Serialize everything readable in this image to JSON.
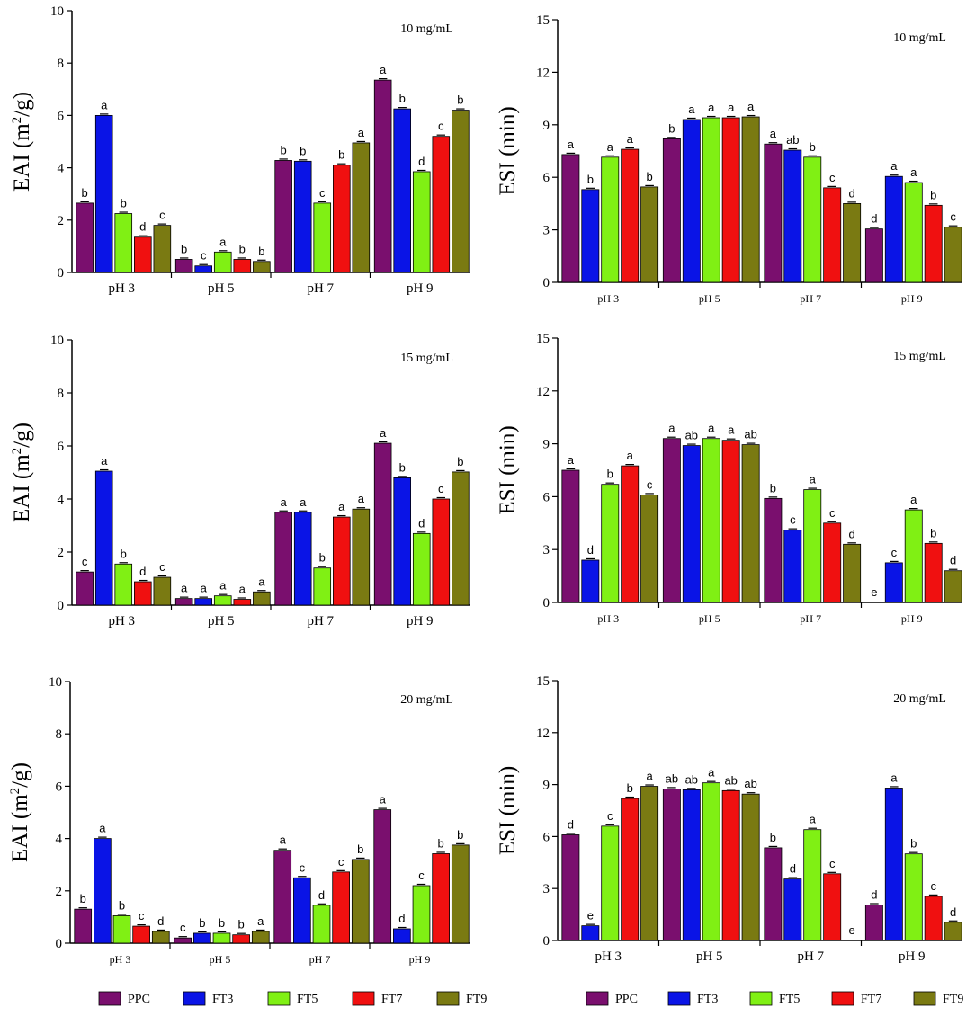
{
  "series_colors": {
    "PPC": "#7a0f6e",
    "FT3": "#0a14e6",
    "FT5": "#80f014",
    "FT7": "#f01010",
    "FT9": "#7a7a12"
  },
  "legend": [
    "PPC",
    "FT3",
    "FT5",
    "FT7",
    "FT9"
  ],
  "chart_data": [
    {
      "id": "eai-10",
      "type": "bar",
      "ylabel": "EAI (m²/g)",
      "annotation": "10 mg/mL",
      "ylim": [
        0,
        10
      ],
      "yticks": [
        "0",
        "2",
        "4",
        "6",
        "8",
        "10"
      ],
      "categories": [
        "pH 3",
        "pH 5",
        "pH 7",
        "pH 9"
      ],
      "series": [
        {
          "name": "PPC",
          "values": [
            2.65,
            0.5,
            4.28,
            7.35
          ],
          "letters": [
            "b",
            "b",
            "b",
            "a"
          ]
        },
        {
          "name": "FT3",
          "values": [
            6.0,
            0.25,
            4.25,
            6.25
          ],
          "letters": [
            "a",
            "c",
            "b",
            "b"
          ]
        },
        {
          "name": "FT5",
          "values": [
            2.25,
            0.78,
            2.65,
            3.85
          ],
          "letters": [
            "b",
            "a",
            "c",
            "d"
          ]
        },
        {
          "name": "FT7",
          "values": [
            1.35,
            0.5,
            4.1,
            5.2
          ],
          "letters": [
            "d",
            "b",
            "b",
            "c"
          ]
        },
        {
          "name": "FT9",
          "values": [
            1.8,
            0.42,
            4.95,
            6.2
          ],
          "letters": [
            "c",
            "b",
            "a",
            "b"
          ]
        }
      ]
    },
    {
      "id": "esi-10",
      "type": "bar",
      "ylabel": "ESI (min)",
      "annotation": "10 mg/mL",
      "ylim": [
        0,
        15
      ],
      "yticks": [
        "0",
        "3",
        "6",
        "9",
        "12",
        "15"
      ],
      "categories": [
        "pH 3",
        "pH 5",
        "pH 7",
        "pH 9"
      ],
      "series": [
        {
          "name": "PPC",
          "values": [
            7.3,
            8.2,
            7.9,
            3.05
          ],
          "letters": [
            "a",
            "b",
            "a",
            "d"
          ]
        },
        {
          "name": "FT3",
          "values": [
            5.3,
            9.3,
            7.55,
            6.05
          ],
          "letters": [
            "b",
            "a",
            "ab",
            "a"
          ]
        },
        {
          "name": "FT5",
          "values": [
            7.15,
            9.4,
            7.15,
            5.7
          ],
          "letters": [
            "a",
            "a",
            "b",
            "a"
          ]
        },
        {
          "name": "FT7",
          "values": [
            7.6,
            9.4,
            5.4,
            4.4
          ],
          "letters": [
            "a",
            "a",
            "c",
            "b"
          ]
        },
        {
          "name": "FT9",
          "values": [
            5.45,
            9.45,
            4.5,
            3.15
          ],
          "letters": [
            "b",
            "a",
            "d",
            "c"
          ]
        }
      ]
    },
    {
      "id": "eai-15",
      "type": "bar",
      "ylabel": "EAI (m²/g)",
      "annotation": "15 mg/mL",
      "ylim": [
        0,
        10
      ],
      "yticks": [
        "0",
        "2",
        "4",
        "6",
        "8",
        "10"
      ],
      "categories": [
        "pH 3",
        "pH 5",
        "pH 7",
        "pH 9"
      ],
      "series": [
        {
          "name": "PPC",
          "values": [
            1.25,
            0.25,
            3.5,
            6.1
          ],
          "letters": [
            "c",
            "a",
            "a",
            "a"
          ]
        },
        {
          "name": "FT3",
          "values": [
            5.05,
            0.25,
            3.5,
            4.8
          ],
          "letters": [
            "a",
            "a",
            "a",
            "b"
          ]
        },
        {
          "name": "FT5",
          "values": [
            1.55,
            0.35,
            1.4,
            2.7
          ],
          "letters": [
            "b",
            "a",
            "b",
            "d"
          ]
        },
        {
          "name": "FT7",
          "values": [
            0.88,
            0.22,
            3.32,
            4.0
          ],
          "letters": [
            "d",
            "a",
            "a",
            "c"
          ]
        },
        {
          "name": "FT9",
          "values": [
            1.05,
            0.5,
            3.62,
            5.02
          ],
          "letters": [
            "c",
            "a",
            "a",
            "b"
          ]
        }
      ]
    },
    {
      "id": "esi-15",
      "type": "bar",
      "ylabel": "ESI (min)",
      "annotation": "15 mg/mL",
      "ylim": [
        0,
        15
      ],
      "yticks": [
        "0",
        "3",
        "6",
        "9",
        "12",
        "15"
      ],
      "categories": [
        "pH 3",
        "pH 5",
        "pH 7",
        "pH 9"
      ],
      "series": [
        {
          "name": "PPC",
          "values": [
            7.5,
            9.3,
            5.9,
            0.0
          ],
          "letters": [
            "a",
            "a",
            "b",
            "e"
          ]
        },
        {
          "name": "FT3",
          "values": [
            2.4,
            8.9,
            4.1,
            2.25
          ],
          "letters": [
            "d",
            "ab",
            "c",
            "c"
          ]
        },
        {
          "name": "FT5",
          "values": [
            6.7,
            9.3,
            6.4,
            5.25
          ],
          "letters": [
            "b",
            "a",
            "a",
            "a"
          ]
        },
        {
          "name": "FT7",
          "values": [
            7.75,
            9.2,
            4.5,
            3.35
          ],
          "letters": [
            "a",
            "a",
            "c",
            "b"
          ]
        },
        {
          "name": "FT9",
          "values": [
            6.1,
            8.95,
            3.3,
            1.8
          ],
          "letters": [
            "c",
            "ab",
            "d",
            "d"
          ]
        }
      ]
    },
    {
      "id": "eai-20",
      "type": "bar",
      "ylabel": "EAI (m²/g)",
      "annotation": "20 mg/mL",
      "ylim": [
        0,
        10
      ],
      "yticks": [
        "0",
        "2",
        "4",
        "6",
        "8",
        "10"
      ],
      "categories": [
        "pH 3",
        "pH 5",
        "pH 7",
        "pH 9"
      ],
      "series": [
        {
          "name": "PPC",
          "values": [
            1.3,
            0.2,
            3.55,
            5.1
          ],
          "letters": [
            "b",
            "c",
            "a",
            "a"
          ]
        },
        {
          "name": "FT3",
          "values": [
            4.0,
            0.38,
            2.5,
            0.55
          ],
          "letters": [
            "a",
            "b",
            "c",
            "d"
          ]
        },
        {
          "name": "FT5",
          "values": [
            1.05,
            0.38,
            1.45,
            2.2
          ],
          "letters": [
            "b",
            "b",
            "d",
            "c"
          ]
        },
        {
          "name": "FT7",
          "values": [
            0.65,
            0.32,
            2.72,
            3.42
          ],
          "letters": [
            "c",
            "b",
            "c",
            "b"
          ]
        },
        {
          "name": "FT9",
          "values": [
            0.45,
            0.45,
            3.2,
            3.75
          ],
          "letters": [
            "d",
            "a",
            "b",
            "b"
          ]
        }
      ]
    },
    {
      "id": "esi-20",
      "type": "bar",
      "ylabel": "ESI (min)",
      "annotation": "20 mg/mL",
      "ylim": [
        0,
        15
      ],
      "yticks": [
        "0",
        "3",
        "6",
        "9",
        "12",
        "15"
      ],
      "categories": [
        "pH 3",
        "pH 5",
        "pH 7",
        "pH 9"
      ],
      "series": [
        {
          "name": "PPC",
          "values": [
            6.1,
            8.75,
            5.35,
            2.05
          ],
          "letters": [
            "d",
            "ab",
            "b",
            "d"
          ]
        },
        {
          "name": "FT3",
          "values": [
            0.85,
            8.7,
            3.55,
            8.8
          ],
          "letters": [
            "e",
            "ab",
            "d",
            "a"
          ]
        },
        {
          "name": "FT5",
          "values": [
            6.6,
            9.1,
            6.4,
            5.0
          ],
          "letters": [
            "c",
            "a",
            "a",
            "b"
          ]
        },
        {
          "name": "FT7",
          "values": [
            8.2,
            8.65,
            3.85,
            2.55
          ],
          "letters": [
            "b",
            "ab",
            "c",
            "c"
          ]
        },
        {
          "name": "FT9",
          "values": [
            8.9,
            8.45,
            0.0,
            1.05
          ],
          "letters": [
            "a",
            "ab",
            "e",
            "d"
          ]
        }
      ]
    }
  ]
}
